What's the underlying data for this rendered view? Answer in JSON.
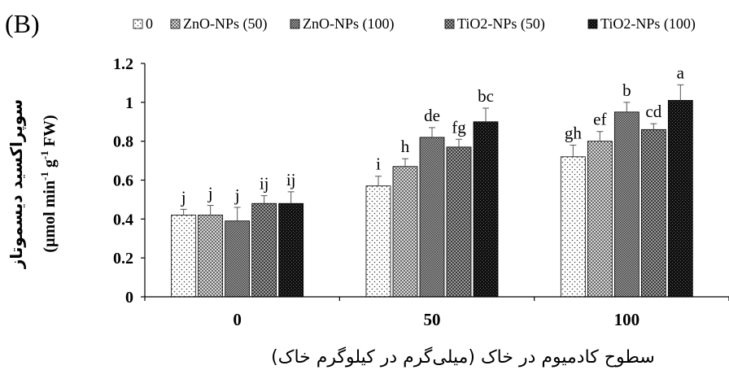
{
  "panel_label": "(B)",
  "chart_data": {
    "type": "bar",
    "xlabel": "سطوح کادمیوم در خاک (میلی‌گرم در کیلوگرم خاک)",
    "ylabel_fa": "سوپراکسید دیسموتاز",
    "ylabel_unit": {
      "base": "(µmol min",
      "sup1": "-1",
      "mid": " g",
      "sup2": "-1",
      "end": " FW)"
    },
    "ylim": [
      0,
      1.2
    ],
    "yticks": [
      0,
      0.2,
      0.4,
      0.6,
      0.8,
      1,
      1.2
    ],
    "ytick_labels": [
      "0",
      "0.2",
      "0.4",
      "0.6",
      "0.8",
      "1",
      "1.2"
    ],
    "categories": [
      "0",
      "50",
      "100"
    ],
    "legend_position": "top",
    "grid": false,
    "series": [
      {
        "name": "0",
        "values": [
          0.42,
          0.57,
          0.72
        ],
        "errors": [
          0.03,
          0.05,
          0.06
        ],
        "letters": [
          "j",
          "i",
          "gh"
        ],
        "pattern": "dots"
      },
      {
        "name": "ZnO-NPs (50)",
        "values": [
          0.42,
          0.67,
          0.8
        ],
        "errors": [
          0.05,
          0.04,
          0.05
        ],
        "letters": [
          "j",
          "h",
          "ef"
        ],
        "pattern": "grid"
      },
      {
        "name": "ZnO-NPs (100)",
        "values": [
          0.39,
          0.82,
          0.95
        ],
        "errors": [
          0.07,
          0.05,
          0.05
        ],
        "letters": [
          "j",
          "de",
          "b"
        ],
        "pattern": "dense"
      },
      {
        "name": "TiO2-NPs (50)",
        "values": [
          0.48,
          0.77,
          0.86
        ],
        "errors": [
          0.04,
          0.04,
          0.03
        ],
        "letters": [
          "ij",
          "fg",
          "cd"
        ],
        "pattern": "check"
      },
      {
        "name": "TiO2-NPs (100)",
        "values": [
          0.48,
          0.9,
          1.01
        ],
        "errors": [
          0.06,
          0.07,
          0.08
        ],
        "letters": [
          "ij",
          "bc",
          "a"
        ],
        "pattern": "dark"
      }
    ]
  }
}
